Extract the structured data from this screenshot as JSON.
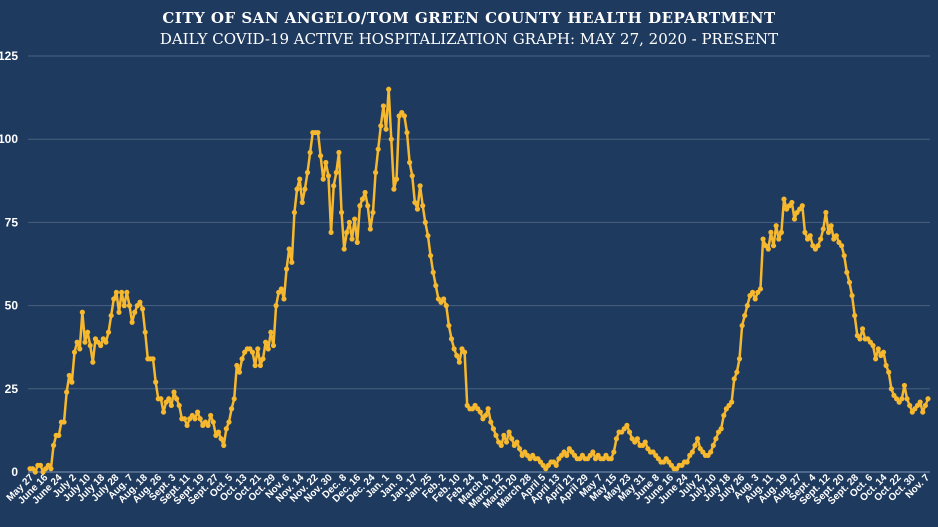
{
  "chart_data": {
    "type": "line",
    "title": "CITY OF SAN ANGELO/TOM GREEN COUNTY HEALTH DEPARTMENT",
    "subtitle": "DAILY COVID-19 ACTIVE HOSPITALIZATION GRAPH: MAY 27, 2020 - PRESENT",
    "xlabel": "",
    "ylabel": "",
    "ylim": [
      0,
      125
    ],
    "yticks": [
      0,
      25,
      50,
      75,
      100,
      125
    ],
    "grid": true,
    "x_tick_labels": [
      "May 27",
      "June 16",
      "June 24",
      "July 2",
      "July 10",
      "July 18",
      "July 28",
      "Aug. 7",
      "Aug. 18",
      "Aug. 26",
      "Sept. 3",
      "Sept. 11",
      "Sept. 19",
      "Sept. 27",
      "Oct. 5",
      "Oct. 13",
      "Oct. 21",
      "Oct. 29",
      "Nov. 6",
      "Nov. 14",
      "Nov. 22",
      "Nov. 30",
      "Dec. 8",
      "Dec. 16",
      "Dec. 24",
      "Jan. 1",
      "Jan. 9",
      "Jan. 17",
      "Jan. 25",
      "Feb. 2",
      "Feb. 10",
      "Feb. 24",
      "March 4",
      "March 12",
      "March 20",
      "March 28",
      "April 5",
      "April 13",
      "April 21",
      "April 29",
      "May 7",
      "May 15",
      "May 23",
      "May 31",
      "June 8",
      "June 16",
      "June 24",
      "July 2",
      "July 10",
      "July 18",
      "July 26",
      "Aug. 3",
      "Aug. 11",
      "Aug. 19",
      "Aug. 27",
      "Sept. 4",
      "Sept. 12",
      "Sept. 20",
      "Sept. 28",
      "Oct. 6",
      "Oct. 14",
      "Oct. 22",
      "Oct. 30",
      "Nov. 7"
    ],
    "series": [
      {
        "line_color": "#f5b82e",
        "values": [
          1,
          1,
          0,
          2,
          2,
          0,
          1,
          2,
          1,
          8,
          11,
          11,
          15,
          15,
          24,
          29,
          27,
          36,
          39,
          37,
          48,
          39,
          42,
          38,
          33,
          40,
          39,
          38,
          40,
          39,
          42,
          47,
          52,
          54,
          48,
          54,
          50,
          54,
          50,
          45,
          48,
          50,
          51,
          49,
          42,
          34,
          34,
          34,
          27,
          22,
          22,
          18,
          21,
          22,
          20,
          24,
          22,
          20,
          16,
          16,
          14,
          16,
          17,
          16,
          18,
          16,
          14,
          15,
          14,
          17,
          15,
          11,
          12,
          10,
          8,
          13,
          15,
          19,
          22,
          32,
          30,
          34,
          36,
          37,
          37,
          36,
          32,
          37,
          32,
          34,
          39,
          37,
          42,
          38,
          50,
          54,
          55,
          52,
          61,
          67,
          63,
          78,
          85,
          88,
          81,
          85,
          90,
          96,
          102,
          102,
          102,
          95,
          88,
          93,
          89,
          72,
          86,
          90,
          96,
          78,
          67,
          72,
          75,
          70,
          76,
          69,
          80,
          82,
          84,
          80,
          73,
          78,
          90,
          97,
          104,
          110,
          103,
          115,
          100,
          85,
          88,
          107,
          108,
          107,
          102,
          93,
          89,
          81,
          79,
          86,
          80,
          75,
          71,
          65,
          60,
          56,
          52,
          51,
          52,
          50,
          44,
          40,
          37,
          35,
          33,
          37,
          36,
          20,
          19,
          19,
          20,
          19,
          18,
          16,
          17,
          19,
          15,
          13,
          11,
          9,
          8,
          11,
          9,
          12,
          10,
          8,
          9,
          7,
          5,
          6,
          5,
          4,
          5,
          4,
          4,
          3,
          2,
          1,
          2,
          3,
          3,
          2,
          4,
          5,
          6,
          5,
          7,
          6,
          5,
          4,
          4,
          5,
          4,
          4,
          5,
          6,
          4,
          5,
          4,
          4,
          5,
          4,
          4,
          6,
          10,
          12,
          12,
          13,
          14,
          12,
          10,
          9,
          10,
          8,
          8,
          9,
          7,
          6,
          6,
          5,
          4,
          3,
          3,
          4,
          3,
          2,
          1,
          1,
          2,
          2,
          3,
          3,
          5,
          6,
          8,
          10,
          7,
          6,
          5,
          5,
          6,
          8,
          10,
          12,
          13,
          17,
          19,
          20,
          21,
          28,
          30,
          34,
          44,
          47,
          50,
          53,
          54,
          52,
          54,
          55,
          70,
          68,
          67,
          72,
          68,
          74,
          70,
          72,
          82,
          79,
          80,
          81,
          76,
          78,
          79,
          80,
          72,
          70,
          71,
          68,
          67,
          68,
          70,
          73,
          78,
          72,
          74,
          70,
          71,
          69,
          68,
          65,
          60,
          57,
          53,
          47,
          41,
          40,
          43,
          40,
          40,
          39,
          38,
          34,
          37,
          35,
          36,
          32,
          30,
          25,
          23,
          22,
          21,
          22,
          26,
          22,
          20,
          18,
          19,
          20,
          21,
          18,
          20,
          22
        ]
      }
    ]
  }
}
